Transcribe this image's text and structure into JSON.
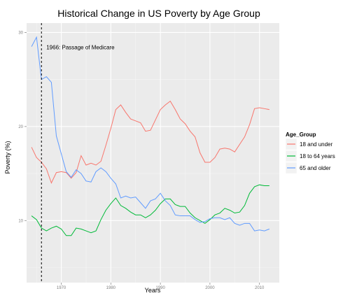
{
  "chart_data": {
    "type": "line",
    "title": "Historical Change in US Poverty by Age Group",
    "xlabel": "Years",
    "ylabel": "Poverty (%)",
    "xlim": [
      1963,
      2014
    ],
    "ylim": [
      3.4,
      31.0
    ],
    "x_ticks": [
      1970,
      1980,
      1990,
      2000,
      2010
    ],
    "y_ticks": [
      10,
      20,
      30
    ],
    "grid": true,
    "legend_title": "Age_Group",
    "legend_position": "right",
    "annotation": {
      "text": "1966: Passage of Medicare",
      "x": 1966
    },
    "series": [
      {
        "name": "18 and under",
        "color": "#F8766D",
        "points": [
          [
            1964,
            17.8
          ],
          [
            1965,
            16.7
          ],
          [
            1966,
            16.2
          ],
          [
            1967,
            15.5
          ],
          [
            1968,
            14.0
          ],
          [
            1969,
            15.1
          ],
          [
            1970,
            15.2
          ],
          [
            1971,
            15.1
          ],
          [
            1972,
            14.5
          ],
          [
            1973,
            15.1
          ],
          [
            1974,
            16.9
          ],
          [
            1975,
            15.9
          ],
          [
            1976,
            16.1
          ],
          [
            1977,
            15.9
          ],
          [
            1978,
            16.3
          ],
          [
            1979,
            18.0
          ],
          [
            1980,
            19.8
          ],
          [
            1981,
            21.8
          ],
          [
            1982,
            22.3
          ],
          [
            1983,
            21.5
          ],
          [
            1984,
            20.8
          ],
          [
            1985,
            20.6
          ],
          [
            1986,
            20.4
          ],
          [
            1987,
            19.5
          ],
          [
            1988,
            19.6
          ],
          [
            1989,
            20.7
          ],
          [
            1990,
            21.8
          ],
          [
            1991,
            22.3
          ],
          [
            1992,
            22.7
          ],
          [
            1993,
            21.8
          ],
          [
            1994,
            20.8
          ],
          [
            1995,
            20.3
          ],
          [
            1996,
            19.5
          ],
          [
            1997,
            18.9
          ],
          [
            1998,
            17.2
          ],
          [
            1999,
            16.2
          ],
          [
            2000,
            16.2
          ],
          [
            2001,
            16.7
          ],
          [
            2002,
            17.6
          ],
          [
            2003,
            17.7
          ],
          [
            2004,
            17.6
          ],
          [
            2005,
            17.3
          ],
          [
            2006,
            18.1
          ],
          [
            2007,
            18.9
          ],
          [
            2008,
            20.2
          ],
          [
            2009,
            21.9
          ],
          [
            2010,
            22.0
          ],
          [
            2011,
            21.9
          ],
          [
            2012,
            21.8
          ]
        ]
      },
      {
        "name": "18 to 64 years",
        "color": "#00BA38",
        "points": [
          [
            1964,
            10.5
          ],
          [
            1965,
            10.1
          ],
          [
            1966,
            9.2
          ],
          [
            1967,
            8.9
          ],
          [
            1968,
            9.2
          ],
          [
            1969,
            9.4
          ],
          [
            1970,
            9.1
          ],
          [
            1971,
            8.4
          ],
          [
            1972,
            8.4
          ],
          [
            1973,
            9.2
          ],
          [
            1974,
            9.1
          ],
          [
            1975,
            8.9
          ],
          [
            1976,
            8.7
          ],
          [
            1977,
            8.9
          ],
          [
            1978,
            10.1
          ],
          [
            1979,
            11.1
          ],
          [
            1980,
            11.8
          ],
          [
            1981,
            12.4
          ],
          [
            1982,
            11.6
          ],
          [
            1983,
            11.3
          ],
          [
            1984,
            10.9
          ],
          [
            1985,
            10.6
          ],
          [
            1986,
            10.6
          ],
          [
            1987,
            10.3
          ],
          [
            1988,
            10.6
          ],
          [
            1989,
            11.1
          ],
          [
            1990,
            11.8
          ],
          [
            1991,
            12.3
          ],
          [
            1992,
            12.3
          ],
          [
            1993,
            11.7
          ],
          [
            1994,
            11.5
          ],
          [
            1995,
            11.5
          ],
          [
            1996,
            10.8
          ],
          [
            1997,
            10.3
          ],
          [
            1998,
            10.0
          ],
          [
            1999,
            9.7
          ],
          [
            2000,
            10.1
          ],
          [
            2001,
            10.6
          ],
          [
            2002,
            10.8
          ],
          [
            2003,
            11.3
          ],
          [
            2004,
            11.1
          ],
          [
            2005,
            10.8
          ],
          [
            2006,
            10.9
          ],
          [
            2007,
            11.6
          ],
          [
            2008,
            12.9
          ],
          [
            2009,
            13.6
          ],
          [
            2010,
            13.8
          ],
          [
            2011,
            13.7
          ],
          [
            2012,
            13.7
          ]
        ]
      },
      {
        "name": "65 and older",
        "color": "#619CFF",
        "points": [
          [
            1964,
            28.5
          ],
          [
            1965,
            29.5
          ],
          [
            1966,
            25.0
          ],
          [
            1967,
            25.3
          ],
          [
            1968,
            24.7
          ],
          [
            1969,
            19.0
          ],
          [
            1970,
            17.1
          ],
          [
            1971,
            15.2
          ],
          [
            1972,
            14.6
          ],
          [
            1973,
            15.4
          ],
          [
            1974,
            15.0
          ],
          [
            1975,
            14.2
          ],
          [
            1976,
            14.1
          ],
          [
            1977,
            15.2
          ],
          [
            1978,
            15.6
          ],
          [
            1979,
            15.2
          ],
          [
            1980,
            14.5
          ],
          [
            1981,
            13.9
          ],
          [
            1982,
            12.4
          ],
          [
            1983,
            12.6
          ],
          [
            1984,
            12.4
          ],
          [
            1985,
            12.5
          ],
          [
            1986,
            11.9
          ],
          [
            1987,
            11.3
          ],
          [
            1988,
            12.1
          ],
          [
            1989,
            12.3
          ],
          [
            1990,
            12.9
          ],
          [
            1991,
            12.1
          ],
          [
            1992,
            11.6
          ],
          [
            1993,
            10.6
          ],
          [
            1994,
            10.5
          ],
          [
            1995,
            10.5
          ],
          [
            1996,
            10.5
          ],
          [
            1997,
            10.1
          ],
          [
            1998,
            9.8
          ],
          [
            1999,
            9.9
          ],
          [
            2000,
            10.2
          ],
          [
            2001,
            10.3
          ],
          [
            2002,
            10.3
          ],
          [
            2003,
            10.1
          ],
          [
            2004,
            10.3
          ],
          [
            2005,
            9.7
          ],
          [
            2006,
            9.5
          ],
          [
            2007,
            9.7
          ],
          [
            2008,
            9.7
          ],
          [
            2009,
            8.9
          ],
          [
            2010,
            9.0
          ],
          [
            2011,
            8.9
          ],
          [
            2012,
            9.1
          ]
        ]
      }
    ]
  }
}
